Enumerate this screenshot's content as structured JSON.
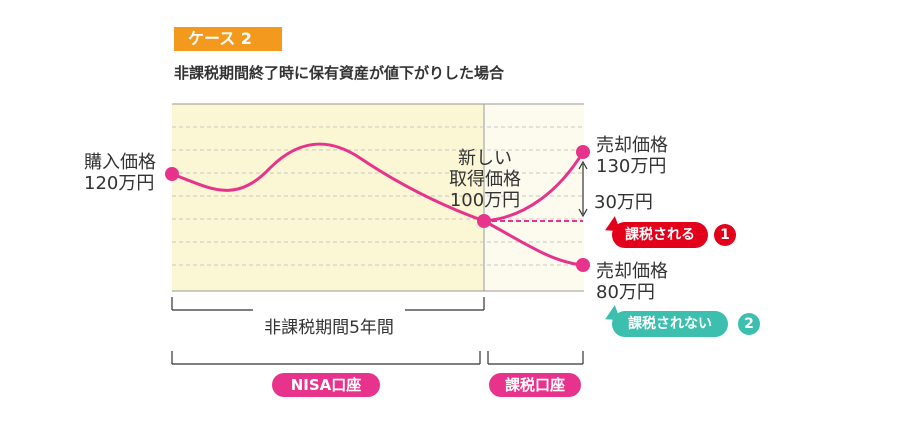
{
  "case_label": "ケース 2",
  "title": "非課税期間終了時に保有資産が値下がりした場合",
  "purchase_price": {
    "label": "購入価格",
    "value": "120万円"
  },
  "new_acquisition_price": {
    "line1": "新しい",
    "line2": "取得価格",
    "value": "100万円"
  },
  "sale_high": {
    "label": "売却価格",
    "value": "130万円"
  },
  "difference": "30万円",
  "sale_low": {
    "label": "売却価格",
    "value": "80万円"
  },
  "callout_taxed": {
    "text": "課税される",
    "number": "1"
  },
  "callout_untaxed": {
    "text": "課税されない",
    "number": "2"
  },
  "tax_free_period": "非課税期間5年間",
  "nisa_account": "NISA口座",
  "taxable_account": "課税口座",
  "colors": {
    "curve": "#e8338c",
    "nisa_bg": "#fbf6d3",
    "taxable_bg": "#fdfbed",
    "taxed_red": "#e3001b",
    "untaxed_teal": "#3cbfae",
    "case_orange": "#f39a1e"
  }
}
